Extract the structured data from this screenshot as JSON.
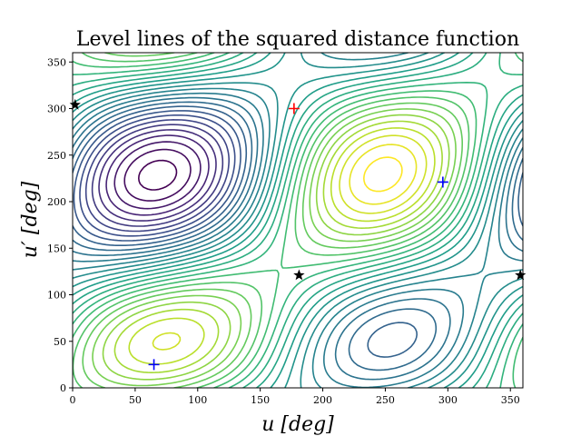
{
  "chart_data": {
    "type": "contour",
    "title": "Level lines of the squared distance function",
    "xlabel": "u [deg]",
    "ylabel": "u′ [deg]",
    "xlim": [
      0,
      360
    ],
    "ylim": [
      0,
      360
    ],
    "x_ticks": [
      0,
      50,
      100,
      150,
      200,
      250,
      300,
      350
    ],
    "y_ticks": [
      0,
      50,
      100,
      150,
      200,
      250,
      300,
      350
    ],
    "x_tick_labels": [
      "0",
      "50",
      "100",
      "150",
      "200",
      "250",
      "300",
      "350"
    ],
    "y_tick_labels": [
      "0",
      "50",
      "100",
      "150",
      "200",
      "250",
      "300",
      "350"
    ],
    "colormap": "viridis",
    "levels": 30,
    "grid": false,
    "markers": {
      "maximum": {
        "symbol": "+",
        "color": "#ff0000",
        "points": [
          [
            177,
            300
          ]
        ]
      },
      "minima": {
        "symbol": "+",
        "color": "#0000ff",
        "points": [
          [
            65,
            25
          ],
          [
            296,
            221
          ]
        ]
      },
      "saddles": {
        "symbol": "star",
        "color": "#000000",
        "points": [
          [
            2,
            304
          ],
          [
            181,
            121
          ],
          [
            358,
            121
          ]
        ]
      }
    }
  }
}
